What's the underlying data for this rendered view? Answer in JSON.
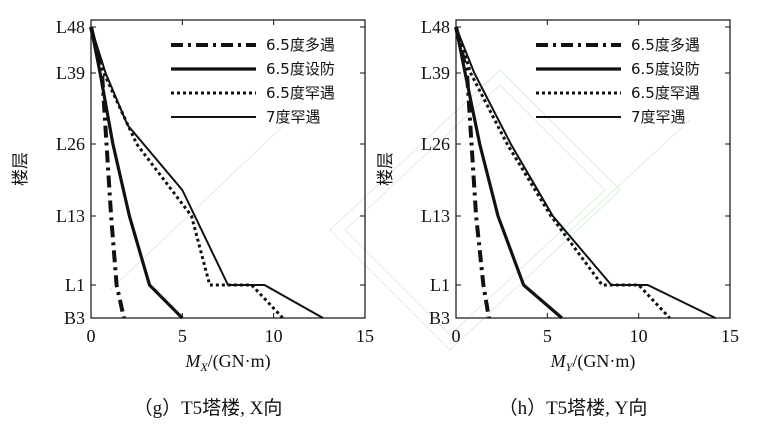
{
  "chart_data": [
    {
      "type": "line",
      "panel": "g",
      "caption": "（g）T5塔楼, X向",
      "xlabel_var": "M",
      "xlabel_sub": "X",
      "xlabel_unit": "/(GN·m)",
      "ylabel": "楼层",
      "xlim": [
        0,
        15
      ],
      "xticks": [
        "0",
        "5",
        "10",
        "15"
      ],
      "y_categories": [
        "B3",
        "L1",
        "L13",
        "L26",
        "L39",
        "L48"
      ],
      "legend_position": "top-right",
      "series": [
        {
          "name": "6.5度多遇",
          "style": "dashdot",
          "points": [
            [
              0,
              "L48"
            ],
            [
              0.6,
              "L39"
            ],
            [
              1.1,
              "L13"
            ],
            [
              1.4,
              "L1"
            ],
            [
              1.8,
              "B3"
            ]
          ]
        },
        {
          "name": "6.5度设防",
          "style": "solid-thick",
          "points": [
            [
              0,
              "L48"
            ],
            [
              0.5,
              "L39"
            ],
            [
              1.2,
              "L26"
            ],
            [
              2.1,
              "L13"
            ],
            [
              3.2,
              "L1"
            ],
            [
              5.0,
              "B3"
            ]
          ]
        },
        {
          "name": "6.5度罕遇",
          "style": "dotted",
          "points": [
            [
              0,
              "L48"
            ],
            [
              0.7,
              "L39"
            ],
            [
              2.5,
              "L26"
            ],
            [
              5.5,
              "L13"
            ],
            [
              6.5,
              "L1"
            ],
            [
              8.8,
              "L1"
            ],
            [
              10.5,
              "B3"
            ]
          ]
        },
        {
          "name": "7度罕遇",
          "style": "solid-thin",
          "points": [
            [
              0,
              "L48"
            ],
            [
              0.8,
              "L39"
            ],
            [
              2.0,
              "L30"
            ],
            [
              5.0,
              "L18"
            ],
            [
              7.5,
              "L1"
            ],
            [
              9.5,
              "L1"
            ],
            [
              12.7,
              "B3"
            ]
          ]
        }
      ]
    },
    {
      "type": "line",
      "panel": "h",
      "caption": "（h）T5塔楼, Y向",
      "xlabel_var": "M",
      "xlabel_sub": "Y",
      "xlabel_unit": "/(GN·m)",
      "ylabel": "楼层",
      "xlim": [
        0,
        15
      ],
      "xticks": [
        "0",
        "5",
        "10",
        "15"
      ],
      "y_categories": [
        "B3",
        "L1",
        "L13",
        "L26",
        "L39",
        "L48"
      ],
      "legend_position": "top-right",
      "series": [
        {
          "name": "6.5度多遇",
          "style": "dashdot",
          "points": [
            [
              0,
              "L48"
            ],
            [
              0.6,
              "L39"
            ],
            [
              1.1,
              "L13"
            ],
            [
              1.5,
              "L1"
            ],
            [
              1.8,
              "B3"
            ]
          ]
        },
        {
          "name": "6.5度设防",
          "style": "solid-thick",
          "points": [
            [
              0,
              "L48"
            ],
            [
              0.5,
              "L39"
            ],
            [
              1.3,
              "L26"
            ],
            [
              2.3,
              "L13"
            ],
            [
              3.7,
              "L1"
            ],
            [
              5.8,
              "B3"
            ]
          ]
        },
        {
          "name": "6.5度罕遇",
          "style": "dotted",
          "points": [
            [
              0,
              "L48"
            ],
            [
              0.8,
              "L39"
            ],
            [
              2.8,
              "L26"
            ],
            [
              5.2,
              "L13"
            ],
            [
              8.0,
              "L1"
            ],
            [
              10.0,
              "L1"
            ],
            [
              11.7,
              "B3"
            ]
          ]
        },
        {
          "name": "7度罕遇",
          "style": "solid-thin",
          "points": [
            [
              0,
              "L48"
            ],
            [
              1.0,
              "L39"
            ],
            [
              3.0,
              "L26"
            ],
            [
              5.3,
              "L13"
            ],
            [
              8.5,
              "L1"
            ],
            [
              10.5,
              "L1"
            ],
            [
              14.2,
              "B3"
            ]
          ]
        }
      ]
    }
  ]
}
